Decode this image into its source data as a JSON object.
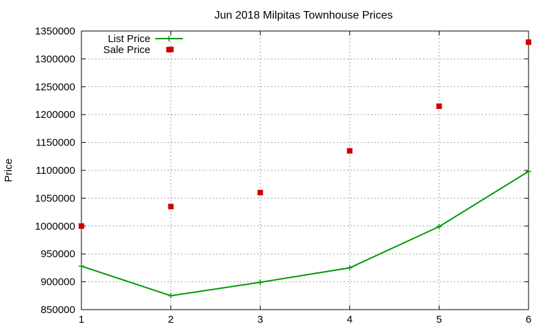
{
  "chart_data": {
    "type": "line",
    "title": "Jun 2018 Milpitas Townhouse Prices",
    "xlabel": "",
    "ylabel": "Price",
    "xlim": [
      1,
      6
    ],
    "ylim": [
      850000,
      1350000
    ],
    "x_ticks": [
      "1",
      "2",
      "3",
      "4",
      "5",
      "6"
    ],
    "y_ticks": [
      "850000",
      "900000",
      "950000",
      "1000000",
      "1050000",
      "1100000",
      "1150000",
      "1200000",
      "1250000",
      "1300000",
      "1350000"
    ],
    "grid": true,
    "legend_position": "top-left",
    "series": [
      {
        "name": "List Price",
        "style": "linespoints",
        "marker": "plus",
        "color": "#009900",
        "x": [
          1,
          2,
          3,
          4,
          5,
          6
        ],
        "y": [
          928000,
          875000,
          899000,
          925000,
          999000,
          1098000
        ]
      },
      {
        "name": "Sale Price",
        "style": "points",
        "marker": "square",
        "color": "#cc0000",
        "x": [
          1,
          2,
          3,
          4,
          5,
          6
        ],
        "y": [
          1000000,
          1035000,
          1060000,
          1135000,
          1215000,
          1330000
        ]
      },
      {
        "name": "",
        "style": "points",
        "marker": "square",
        "color": "#cc0000",
        "x": [
          2
        ],
        "y": [
          1317000
        ]
      }
    ]
  }
}
